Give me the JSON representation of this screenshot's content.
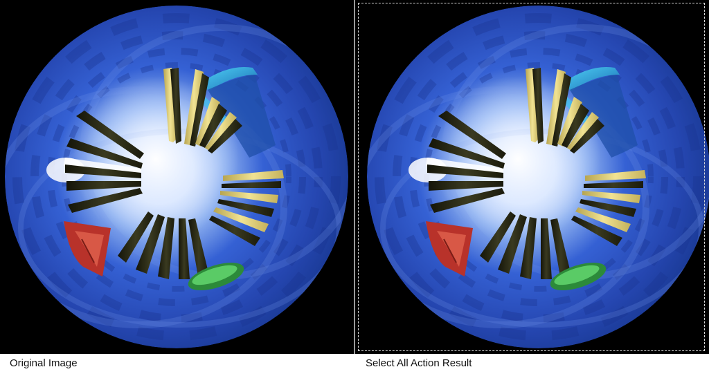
{
  "captions": {
    "original": "Original Image",
    "result": "Select All Action Result"
  },
  "colors": {
    "background": "#000000",
    "sphere_dark": "#1c3c9a",
    "sphere_mid": "#3561d4",
    "sphere_glow": "#e9f1ff",
    "fin_dark": "#2a2a17",
    "fin_yellow": "#e4d37a",
    "cyan_band": "#2ab0e0",
    "red_ornament": "#b8322a",
    "green_ornament": "#3bb24a",
    "marquee": "#d8d8d8"
  },
  "selection": {
    "type": "select-all-marquee"
  }
}
